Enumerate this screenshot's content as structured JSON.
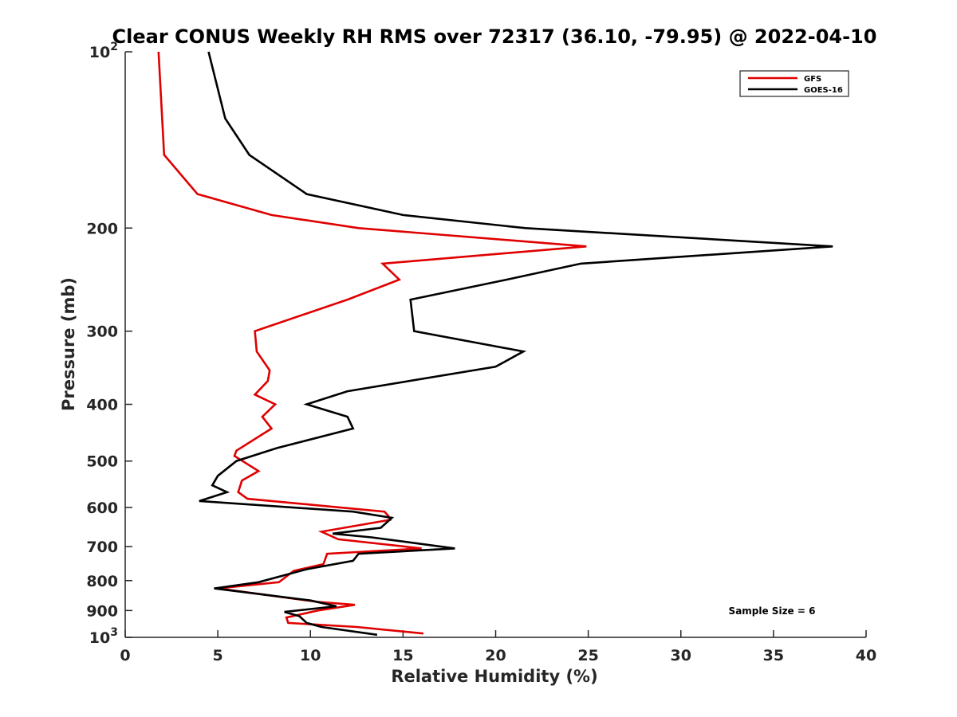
{
  "chart_data": {
    "type": "line",
    "title": "Clear CONUS Weekly RH RMS over 72317 (36.10, -79.95) @ 2022-04-10",
    "xlabel": "Relative Humidity (%)",
    "ylabel": "Pressure (mb)",
    "xlim": [
      0,
      40
    ],
    "ylim": [
      100,
      1000
    ],
    "yscale": "log",
    "y_reversed": true,
    "grid": false,
    "legend_position": "top-right",
    "x_ticks": [
      0,
      5,
      10,
      15,
      20,
      25,
      30,
      35,
      40
    ],
    "x_tick_labels": [
      "0",
      "5",
      "10",
      "15",
      "20",
      "25",
      "30",
      "35",
      "40"
    ],
    "y_ticks": [
      100,
      200,
      300,
      400,
      500,
      600,
      700,
      800,
      900,
      1000
    ],
    "y_tick_labels": [
      {
        "base": "10",
        "exp": "2"
      },
      {
        "base": "200",
        "exp": ""
      },
      {
        "base": "300",
        "exp": ""
      },
      {
        "base": "400",
        "exp": ""
      },
      {
        "base": "500",
        "exp": ""
      },
      {
        "base": "600",
        "exp": ""
      },
      {
        "base": "700",
        "exp": ""
      },
      {
        "base": "800",
        "exp": ""
      },
      {
        "base": "900",
        "exp": ""
      },
      {
        "base": "10",
        "exp": "3"
      }
    ],
    "annotation": "Sample Size = 6",
    "series": [
      {
        "name": "GFS",
        "color": "#e00000",
        "points": [
          [
            1.8,
            100
          ],
          [
            2.1,
            150
          ],
          [
            3.9,
            175
          ],
          [
            7.9,
            190
          ],
          [
            12.6,
            200
          ],
          [
            24.9,
            215
          ],
          [
            13.9,
            230
          ],
          [
            14.8,
            245
          ],
          [
            12.0,
            265
          ],
          [
            7.0,
            300
          ],
          [
            7.1,
            325
          ],
          [
            7.8,
            350
          ],
          [
            7.7,
            365
          ],
          [
            7.0,
            385
          ],
          [
            8.1,
            400
          ],
          [
            7.4,
            420
          ],
          [
            7.9,
            440
          ],
          [
            6.0,
            480
          ],
          [
            5.9,
            490
          ],
          [
            7.2,
            520
          ],
          [
            6.3,
            540
          ],
          [
            6.1,
            565
          ],
          [
            6.6,
            580
          ],
          [
            14.0,
            610
          ],
          [
            14.2,
            620
          ],
          [
            14.3,
            630
          ],
          [
            10.6,
            660
          ],
          [
            11.5,
            680
          ],
          [
            16.0,
            705
          ],
          [
            10.9,
            720
          ],
          [
            10.7,
            750
          ],
          [
            9.1,
            770
          ],
          [
            8.3,
            805
          ],
          [
            5.0,
            825
          ],
          [
            10.4,
            870
          ],
          [
            12.4,
            880
          ],
          [
            10.4,
            900
          ],
          [
            8.7,
            925
          ],
          [
            8.8,
            945
          ],
          [
            12.5,
            960
          ],
          [
            16.1,
            985
          ]
        ]
      },
      {
        "name": "GOES-16",
        "color": "#000000",
        "points": [
          [
            4.5,
            100
          ],
          [
            5.4,
            130
          ],
          [
            6.7,
            150
          ],
          [
            9.8,
            175
          ],
          [
            15.0,
            190
          ],
          [
            21.6,
            200
          ],
          [
            38.2,
            215
          ],
          [
            24.6,
            230
          ],
          [
            20.6,
            245
          ],
          [
            15.4,
            265
          ],
          [
            15.6,
            300
          ],
          [
            21.5,
            325
          ],
          [
            20.0,
            345
          ],
          [
            12.0,
            380
          ],
          [
            9.8,
            400
          ],
          [
            12.0,
            420
          ],
          [
            12.3,
            440
          ],
          [
            8.2,
            475
          ],
          [
            6.0,
            500
          ],
          [
            5.0,
            530
          ],
          [
            4.7,
            550
          ],
          [
            5.5,
            565
          ],
          [
            4.0,
            585
          ],
          [
            12.3,
            610
          ],
          [
            14.4,
            625
          ],
          [
            13.8,
            650
          ],
          [
            11.2,
            665
          ],
          [
            13.3,
            675
          ],
          [
            17.8,
            705
          ],
          [
            12.6,
            720
          ],
          [
            12.3,
            740
          ],
          [
            9.8,
            765
          ],
          [
            7.2,
            805
          ],
          [
            4.8,
            825
          ],
          [
            10.0,
            865
          ],
          [
            11.4,
            885
          ],
          [
            8.6,
            905
          ],
          [
            9.4,
            920
          ],
          [
            9.8,
            945
          ],
          [
            10.6,
            960
          ],
          [
            13.6,
            990
          ]
        ]
      }
    ]
  }
}
